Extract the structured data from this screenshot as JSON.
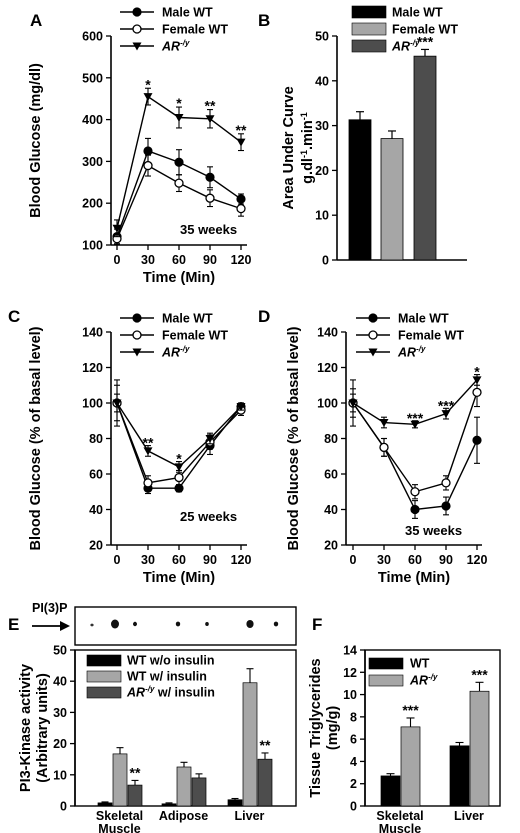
{
  "chart_data": [
    {
      "panel": "A",
      "type": "line",
      "x": [
        0,
        30,
        60,
        90,
        120
      ],
      "xlabel": "Time (Min)",
      "ylabel": "Blood Glucose (mg/dl)",
      "ylim": [
        100,
        600
      ],
      "yticks": [
        100,
        200,
        300,
        400,
        500,
        600
      ],
      "annotation": "35 weeks",
      "series": [
        {
          "name": "Male WT",
          "marker": "circle-filled",
          "values": [
            120,
            325,
            298,
            262,
            210
          ],
          "errors": [
            18,
            30,
            30,
            25,
            12
          ]
        },
        {
          "name": "Female WT",
          "marker": "circle-open",
          "values": [
            115,
            290,
            248,
            212,
            187
          ],
          "errors": [
            12,
            25,
            20,
            20,
            18
          ]
        },
        {
          "name": "AR-/y",
          "marker": "triangle-down",
          "values": [
            140,
            455,
            405,
            402,
            346
          ],
          "errors": [
            20,
            20,
            25,
            22,
            20
          ]
        }
      ],
      "significance": [
        "",
        "*",
        "*",
        "**",
        "**"
      ]
    },
    {
      "panel": "B",
      "type": "bar",
      "categories": [
        "Male WT",
        "Female WT",
        "AR-/y"
      ],
      "values": [
        31.3,
        27.1,
        45.5
      ],
      "errors": [
        1.8,
        1.7,
        1.5
      ],
      "colors": [
        "#000000",
        "#a6a6a6",
        "#4d4d4d"
      ],
      "ylabel_line1": "Area Under Curve",
      "ylabel_line2": "g.dl",
      "ylim": [
        0,
        50
      ],
      "yticks": [
        0,
        10,
        20,
        30,
        40,
        50
      ],
      "significance": [
        "",
        "",
        "***"
      ]
    },
    {
      "panel": "C",
      "type": "line",
      "x": [
        0,
        30,
        60,
        90,
        120
      ],
      "xlabel": "Time (Min)",
      "ylabel": "Blood Glucose (% of basal level)",
      "ylim": [
        20,
        140
      ],
      "yticks": [
        20,
        40,
        60,
        80,
        100,
        120,
        140
      ],
      "annotation": "25 weeks",
      "series": [
        {
          "name": "Male WT",
          "marker": "circle-filled",
          "values": [
            100,
            52,
            52,
            76,
            98
          ],
          "errors": [
            13,
            3,
            2,
            5,
            2
          ]
        },
        {
          "name": "Female WT",
          "marker": "circle-open",
          "values": [
            100,
            55,
            58,
            78,
            96
          ],
          "errors": [
            10,
            4,
            4,
            4,
            3
          ]
        },
        {
          "name": "AR-/y",
          "marker": "triangle-down",
          "values": [
            100,
            73,
            64,
            80,
            98
          ],
          "errors": [
            5,
            3,
            3,
            3,
            2
          ]
        }
      ],
      "significance": [
        "",
        "**",
        "*",
        "",
        ""
      ]
    },
    {
      "panel": "D",
      "type": "line",
      "x": [
        0,
        30,
        60,
        90,
        120
      ],
      "xlabel": "Time (Min)",
      "ylabel": "Blood Glucose (% of basal level)",
      "ylim": [
        20,
        140
      ],
      "yticks": [
        20,
        40,
        60,
        80,
        100,
        120,
        140
      ],
      "annotation": "35 weeks",
      "series": [
        {
          "name": "Male WT",
          "marker": "circle-filled",
          "values": [
            100,
            75,
            40,
            42,
            79
          ],
          "errors": [
            13,
            5,
            5,
            5,
            13
          ]
        },
        {
          "name": "Female WT",
          "marker": "circle-open",
          "values": [
            100,
            75,
            50,
            55,
            106
          ],
          "errors": [
            8,
            5,
            4,
            4,
            8
          ]
        },
        {
          "name": "AR-/y",
          "marker": "triangle-down",
          "values": [
            100,
            89,
            88,
            94,
            113
          ],
          "errors": [
            5,
            3,
            2,
            3,
            3
          ]
        }
      ],
      "significance": [
        "",
        "",
        "***",
        "***",
        "*"
      ]
    },
    {
      "panel": "E",
      "type": "bar",
      "categories": [
        "Skeletal Muscle",
        "Adipose",
        "Liver"
      ],
      "ylabel_line1": "PI3-Kinase activity",
      "ylabel_line2": "(Arbitrary units)",
      "ylim": [
        0,
        50
      ],
      "yticks": [
        0,
        10,
        20,
        30,
        40,
        50
      ],
      "blot_label": "PI(3)P",
      "series": [
        {
          "name": "WT w/o insulin",
          "color": "#000000",
          "values": [
            1.0,
            0.7,
            2.0
          ],
          "errors": [
            0.3,
            0.3,
            0.4
          ]
        },
        {
          "name": "WT w/ insulin",
          "color": "#a6a6a6",
          "values": [
            16.7,
            12.5,
            39.5
          ],
          "errors": [
            2.0,
            1.5,
            4.5
          ]
        },
        {
          "name": "AR-/y w/ insulin",
          "color": "#4d4d4d",
          "values": [
            6.7,
            9.0,
            15.0
          ],
          "errors": [
            1.5,
            1.3,
            2.0
          ]
        }
      ],
      "significance": [
        "**",
        "",
        "**"
      ]
    },
    {
      "panel": "F",
      "type": "bar",
      "categories": [
        "Skeletal Muscle",
        "Liver"
      ],
      "ylabel_line1": "Tissue Triglycerides",
      "ylabel_line2": "(mg/g)",
      "ylim": [
        0,
        14
      ],
      "yticks": [
        0,
        2,
        4,
        6,
        8,
        10,
        12,
        14
      ],
      "series": [
        {
          "name": "WT",
          "color": "#000000",
          "values": [
            2.7,
            5.4
          ],
          "errors": [
            0.2,
            0.3
          ]
        },
        {
          "name": "AR-/y",
          "color": "#a6a6a6",
          "values": [
            7.1,
            10.3
          ],
          "errors": [
            0.8,
            0.8
          ]
        }
      ],
      "significance": [
        "***",
        "***"
      ]
    }
  ]
}
